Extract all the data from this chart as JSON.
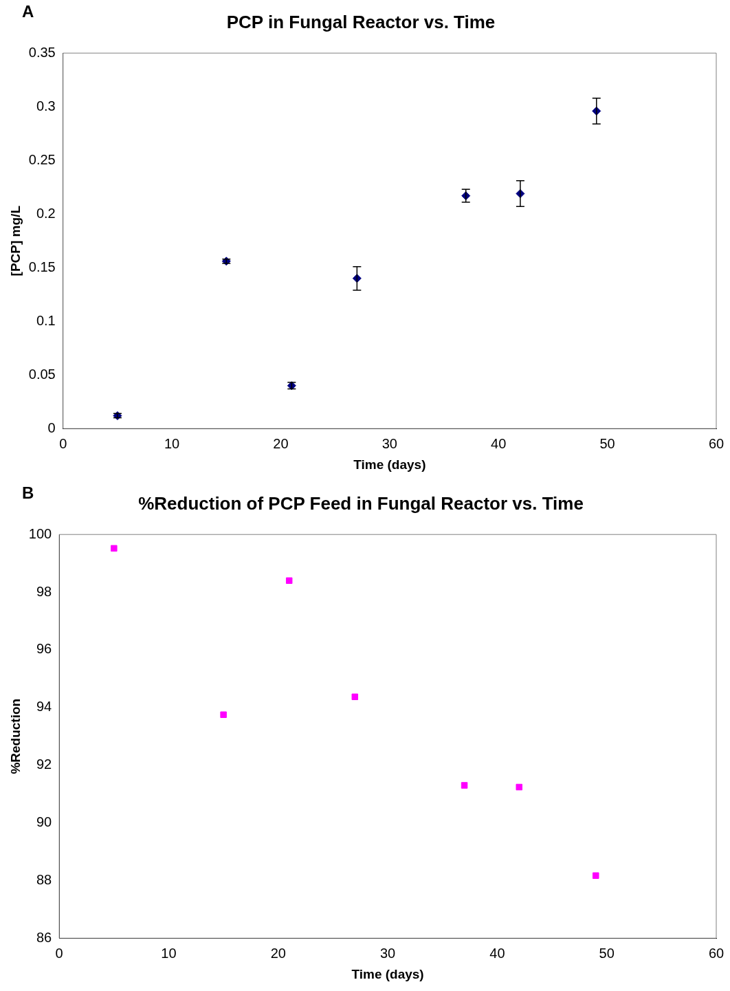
{
  "chart_data": [
    {
      "type": "scatter",
      "title": "PCP in Fungal Reactor vs. Time",
      "xlabel": "Time (days)",
      "ylabel": "[PCP] mg/L",
      "annotations": [
        "A"
      ],
      "x": [
        5,
        15,
        21,
        27,
        37,
        42,
        49
      ],
      "series": [
        {
          "color": "#000080",
          "values": [
            0.012,
            0.156,
            0.04,
            0.14,
            0.217,
            0.219,
            0.296
          ],
          "errors": [
            0.002,
            0.002,
            0.003,
            0.011,
            0.006,
            0.012,
            0.012
          ]
        }
      ],
      "xlim": [
        0,
        60
      ],
      "xticks": [
        0,
        10,
        20,
        30,
        40,
        50,
        60
      ],
      "ylim": [
        0,
        0.35
      ],
      "yticks": [
        0,
        0.05,
        0.1,
        0.15,
        0.2,
        0.25,
        0.3,
        0.35
      ],
      "grid": false,
      "legend": false,
      "marker": "diamond"
    },
    {
      "type": "scatter",
      "title": "%Reduction of PCP Feed in Fungal Reactor vs. Time",
      "xlabel": "Time (days)",
      "ylabel": "%Reduction",
      "annotations": [
        "B"
      ],
      "x": [
        5,
        15,
        21,
        27,
        37,
        42,
        49
      ],
      "series": [
        {
          "color": "#ff00ff",
          "values": [
            99.52,
            93.75,
            98.4,
            94.37,
            91.3,
            91.24,
            88.17
          ]
        }
      ],
      "xlim": [
        0,
        60
      ],
      "xticks": [
        0,
        10,
        20,
        30,
        40,
        50,
        60
      ],
      "ylim": [
        86,
        100
      ],
      "yticks": [
        86,
        88,
        90,
        92,
        94,
        96,
        98,
        100
      ],
      "grid": false,
      "legend": false,
      "marker": "square"
    }
  ]
}
